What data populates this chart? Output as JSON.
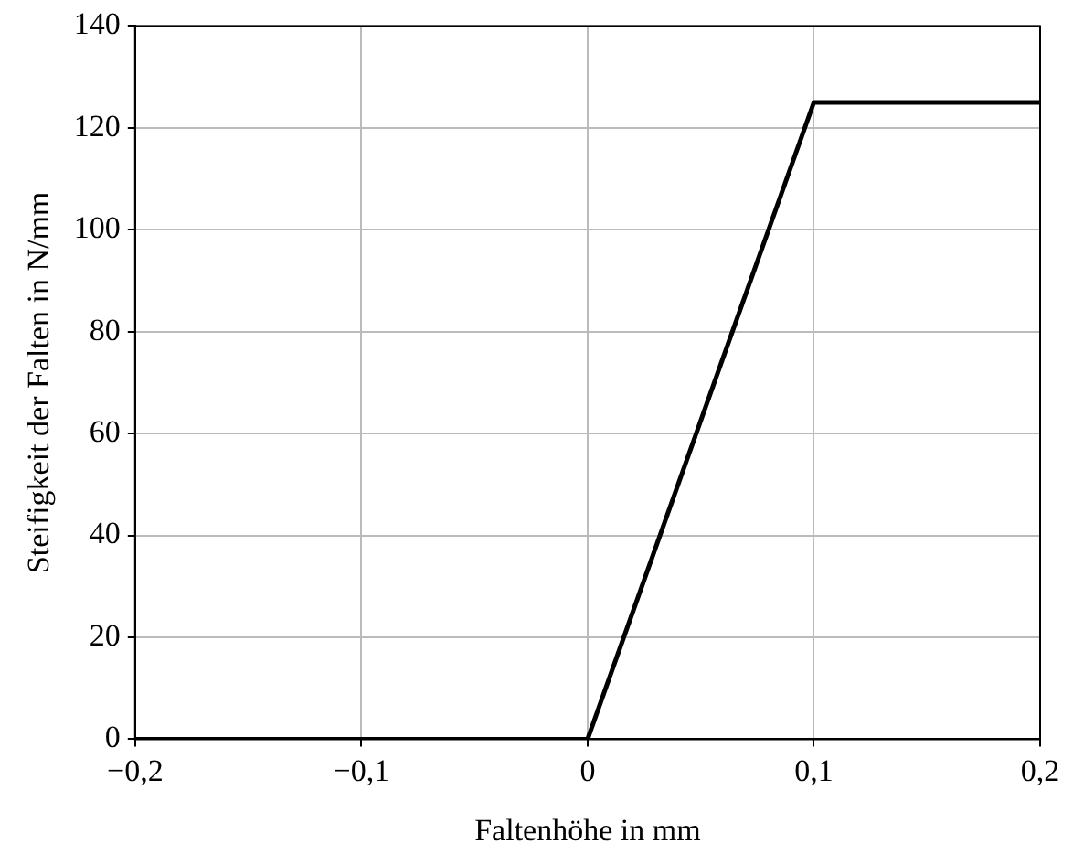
{
  "chart_data": {
    "type": "line",
    "xlabel": "Faltenhöhe in mm",
    "ylabel": "Steifigkeit der Falten in N/mm",
    "x": [
      -0.2,
      0,
      0.1,
      0.2
    ],
    "series": [
      {
        "color": "#000000",
        "values": [
          0,
          0,
          125,
          125
        ]
      }
    ],
    "xlim": [
      -0.2,
      0.2
    ],
    "xticks": [
      {
        "value": -0.2,
        "label": "−0,2"
      },
      {
        "value": -0.1,
        "label": "−0,1"
      },
      0,
      {
        "value": 0.1,
        "label": "0,1"
      },
      {
        "value": 0.2,
        "label": "0,2"
      }
    ],
    "ylim": [
      0,
      140
    ],
    "yticks": [
      0,
      20,
      40,
      60,
      80,
      100,
      120,
      140
    ],
    "grid": true,
    "marker": "none",
    "line_style": "solid",
    "legend": false
  }
}
